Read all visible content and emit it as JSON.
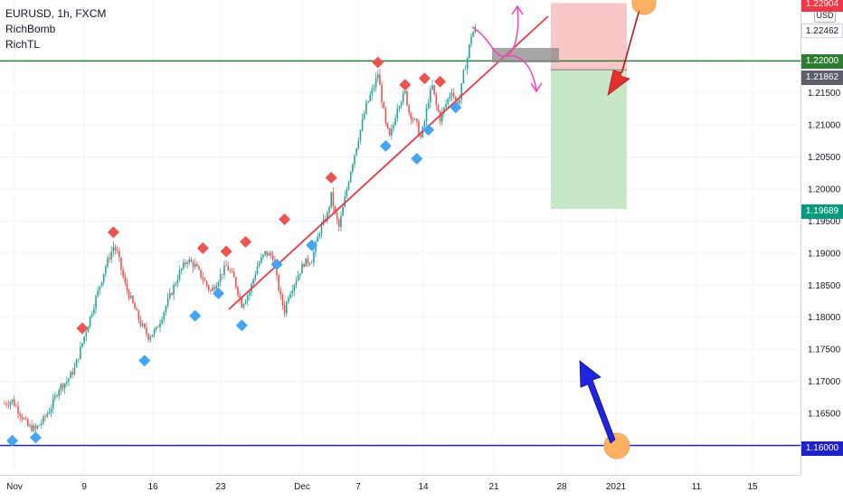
{
  "chart_data": {
    "type": "candlestick",
    "symbol": "EURUSD",
    "title": "EURUSD, 1h, FXCM",
    "indicators": [
      "RichBomb",
      "RichTL"
    ],
    "currency": "USD",
    "x_tick_labels": [
      "Nov",
      "9",
      "16",
      "23",
      "Dec",
      "7",
      "14",
      "21",
      "28",
      "2021",
      "11",
      "15"
    ],
    "y_ticks": [
      "1.16500",
      "1.17000",
      "1.17500",
      "1.18000",
      "1.18500",
      "1.19000",
      "1.19500",
      "1.20000",
      "1.20500",
      "1.21000",
      "1.21500"
    ],
    "ylim": [
      1.1595,
      1.2295
    ],
    "price_path": [
      [
        0,
        1.1665
      ],
      [
        2,
        1.167
      ],
      [
        4,
        1.165
      ],
      [
        6,
        1.163
      ],
      [
        8,
        1.1625
      ],
      [
        10,
        1.164
      ],
      [
        12,
        1.166
      ],
      [
        14,
        1.169
      ],
      [
        16,
        1.17
      ],
      [
        18,
        1.172
      ],
      [
        20,
        1.176
      ],
      [
        22,
        1.18
      ],
      [
        24,
        1.184
      ],
      [
        26,
        1.188
      ],
      [
        28,
        1.191
      ],
      [
        29,
        1.19
      ],
      [
        31,
        1.185
      ],
      [
        33,
        1.182
      ],
      [
        35,
        1.179
      ],
      [
        37,
        1.177
      ],
      [
        39,
        1.178
      ],
      [
        41,
        1.181
      ],
      [
        43,
        1.184
      ],
      [
        45,
        1.187
      ],
      [
        47,
        1.189
      ],
      [
        49,
        1.188
      ],
      [
        51,
        1.186
      ],
      [
        53,
        1.184
      ],
      [
        55,
        1.186
      ],
      [
        57,
        1.188
      ],
      [
        59,
        1.186
      ],
      [
        61,
        1.182
      ],
      [
        63,
        1.184
      ],
      [
        65,
        1.188
      ],
      [
        67,
        1.19
      ],
      [
        69,
        1.1895
      ],
      [
        70,
        1.186
      ],
      [
        71,
        1.183
      ],
      [
        72,
        1.181
      ],
      [
        73,
        1.1835
      ],
      [
        75,
        1.186
      ],
      [
        77,
        1.1885
      ],
      [
        79,
        1.189
      ],
      [
        81,
        1.1935
      ],
      [
        83,
        1.196
      ],
      [
        84,
        1.199
      ],
      [
        85,
        1.196
      ],
      [
        86,
        1.194
      ],
      [
        87,
        1.197
      ],
      [
        89,
        1.203
      ],
      [
        91,
        1.208
      ],
      [
        93,
        1.213
      ],
      [
        95,
        1.216
      ],
      [
        96,
        1.218
      ],
      [
        97,
        1.214
      ],
      [
        98,
        1.21
      ],
      [
        99,
        1.208
      ],
      [
        100,
        1.21
      ],
      [
        101,
        1.213
      ],
      [
        103,
        1.215
      ],
      [
        104,
        1.212
      ],
      [
        106,
        1.21
      ],
      [
        107,
        1.208
      ],
      [
        108,
        1.2105
      ],
      [
        109,
        1.214
      ],
      [
        110,
        1.216
      ],
      [
        111,
        1.213
      ],
      [
        112,
        1.211
      ],
      [
        114,
        1.214
      ],
      [
        115,
        1.2155
      ],
      [
        116,
        1.2135
      ],
      [
        117,
        1.214
      ],
      [
        118,
        1.218
      ],
      [
        119,
        1.2205
      ],
      [
        120,
        1.224
      ],
      [
        121,
        1.225
      ]
    ],
    "markers": {
      "highs": [
        {
          "x": 20,
          "y": 1.177
        },
        {
          "x": 28,
          "y": 1.192
        },
        {
          "x": 51,
          "y": 1.1895
        },
        {
          "x": 57,
          "y": 1.189
        },
        {
          "x": 62,
          "y": 1.1905
        },
        {
          "x": 72,
          "y": 1.194
        },
        {
          "x": 84,
          "y": 1.2005
        },
        {
          "x": 96,
          "y": 1.2185
        },
        {
          "x": 103,
          "y": 1.215
        },
        {
          "x": 108,
          "y": 1.216
        },
        {
          "x": 112,
          "y": 1.2155
        }
      ],
      "lows": [
        {
          "x": 2,
          "y": 1.162
        },
        {
          "x": 8,
          "y": 1.1625
        },
        {
          "x": 36,
          "y": 1.1745
        },
        {
          "x": 49,
          "y": 1.1815
        },
        {
          "x": 55,
          "y": 1.185
        },
        {
          "x": 61,
          "y": 1.18
        },
        {
          "x": 70,
          "y": 1.1895
        },
        {
          "x": 79,
          "y": 1.1925
        },
        {
          "x": 98,
          "y": 1.208
        },
        {
          "x": 106,
          "y": 1.206
        },
        {
          "x": 109,
          "y": 1.2105
        },
        {
          "x": 116,
          "y": 1.214
        }
      ]
    },
    "price_levels": {
      "resistance": "1.22000",
      "support": "1.16000",
      "current": "1.22462",
      "entry": "1.21862",
      "stop": "1.22904",
      "target": "1.19689"
    },
    "colors": {
      "up_candle": "#26a69a",
      "down_candle": "#ef5350",
      "high_marker": "#ef5350",
      "low_marker": "#42a5f5",
      "trendline": "#f23645",
      "resistance_line": "#2e7d32",
      "support_line": "#1e22c8",
      "target_label": "#089981",
      "stop_label": "#f23645",
      "forecast_path": "#ff3ebb",
      "stop_zone": "#f8c8c8",
      "target_zone": "#c6e8c6",
      "down_arrow": "#e52f2f",
      "up_arrow": "#1f24e0",
      "circle_marker": "#ffb061"
    },
    "grid": true,
    "legend": "top-left"
  }
}
